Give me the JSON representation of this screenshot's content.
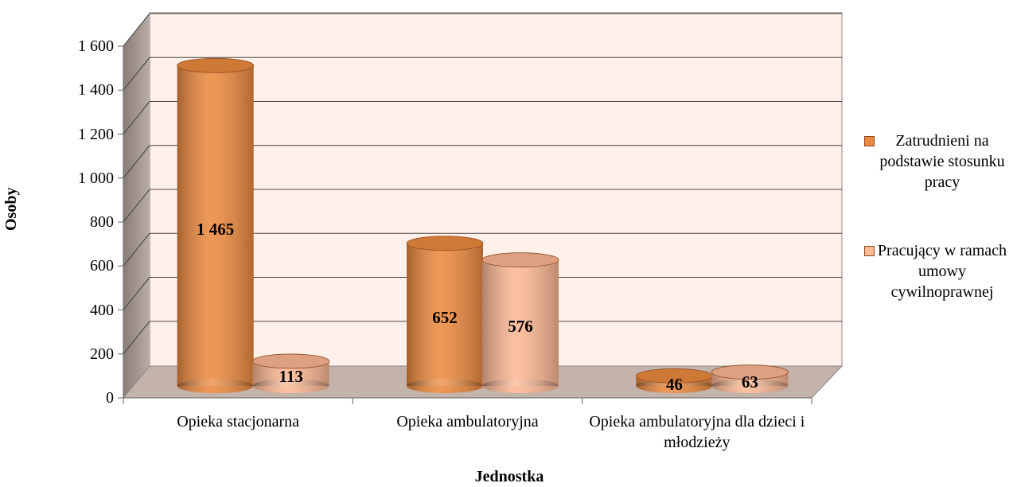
{
  "chart_data": {
    "type": "bar",
    "categories": [
      "Opieka stacjonarna",
      "Opieka ambulatoryjna",
      "Opieka ambulatoryjna dla dzieci i młodzieży"
    ],
    "series": [
      {
        "name": "Zatrudnieni na podstawie stosunku pracy",
        "color": "#ec8a3f",
        "values": [
          1465,
          652,
          46
        ],
        "value_labels": [
          "1 465",
          "652",
          "46"
        ]
      },
      {
        "name": "Pracujący w ramach umowy cywilnoprawnej",
        "color": "#fcb894",
        "values": [
          113,
          576,
          63
        ]
      }
    ],
    "ylim": [
      0,
      1600
    ],
    "yticks": [
      0,
      200,
      400,
      600,
      800,
      {
        "value": 1000,
        "label": "1 000"
      },
      {
        "value": 1200,
        "label": "1 200"
      },
      {
        "value": 1400,
        "label": "1 400"
      },
      {
        "value": 1600,
        "label": "1 600"
      }
    ],
    "ylabel": "Osoby",
    "xlabel": "Jednostka",
    "grid": true,
    "legend": "right"
  }
}
